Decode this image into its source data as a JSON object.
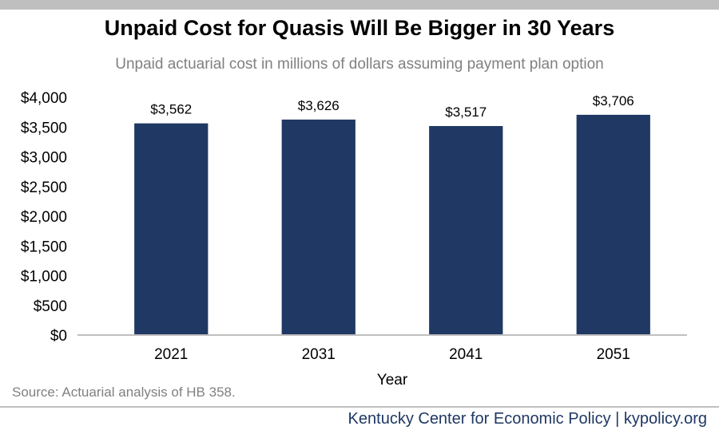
{
  "title": "Unpaid Cost for Quasis Will Be Bigger in 30 Years",
  "subtitle": "Unpaid actuarial cost in millions of dollars assuming payment plan option",
  "source": "Source: Actuarial analysis of HB 358.",
  "footer": "Kentucky Center for Economic Policy | kypolicy.org",
  "colors": {
    "bar": "#1f3864",
    "top_bar": "#bfbfbf",
    "subtitle": "#808080",
    "footer": "#1f3864"
  },
  "chart_data": {
    "type": "bar",
    "title": "Unpaid Cost for Quasis Will Be Bigger in 30 Years",
    "subtitle": "Unpaid actuarial cost in millions of dollars assuming payment plan option",
    "xlabel": "Year",
    "ylabel": "",
    "categories": [
      "2021",
      "2031",
      "2041",
      "2051"
    ],
    "values": [
      3562,
      3626,
      3517,
      3706
    ],
    "data_labels": [
      "$3,562",
      "$3,626",
      "$3,517",
      "$3,706"
    ],
    "ylim": [
      0,
      4000
    ],
    "yticks": [
      0,
      500,
      1000,
      1500,
      2000,
      2500,
      3000,
      3500,
      4000
    ],
    "ytick_labels": [
      "$0",
      "$500",
      "$1,000",
      "$1,500",
      "$2,000",
      "$2,500",
      "$3,000",
      "$3,500",
      "$4,000"
    ],
    "grid": false,
    "legend": "none"
  }
}
